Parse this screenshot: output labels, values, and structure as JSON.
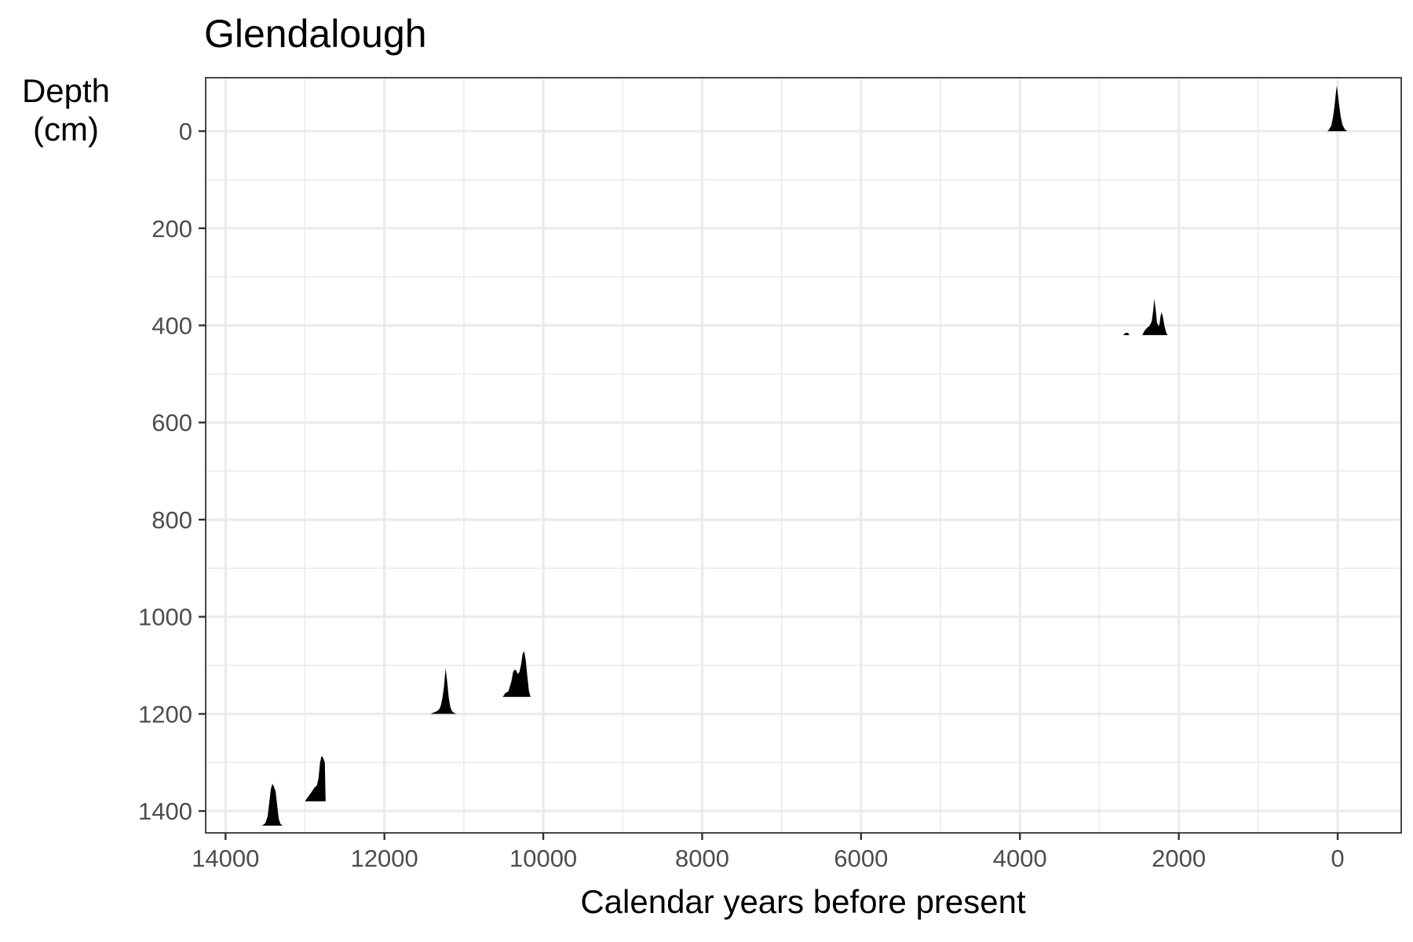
{
  "chart_data": {
    "type": "area",
    "title": "Glendalough",
    "xlabel": "Calendar years before present",
    "ylabel_lines": [
      "Depth",
      "(cm)"
    ],
    "x_reversed": true,
    "y_reversed": true,
    "xlim": [
      14250,
      -800
    ],
    "ylim": [
      -110,
      1445
    ],
    "x_ticks": [
      14000,
      12000,
      10000,
      8000,
      6000,
      4000,
      2000,
      0
    ],
    "x_tick_labels": [
      "14000",
      "12000",
      "10000",
      "8000",
      "6000",
      "4000",
      "2000",
      "0"
    ],
    "y_ticks": [
      0,
      200,
      400,
      600,
      800,
      1000,
      1200,
      1400
    ],
    "y_tick_labels": [
      "0",
      "200",
      "400",
      "600",
      "800",
      "1000",
      "1200",
      "1400"
    ],
    "grid": true,
    "legend": "none",
    "fill_color": "#000000",
    "dates": [
      {
        "name": "date-1",
        "depth": 0,
        "ages": [
          -120,
          -90,
          -60,
          -40,
          -20,
          0,
          10,
          20,
          40,
          60,
          80,
          110,
          130
        ],
        "density": [
          0.0,
          0.04,
          0.14,
          0.3,
          0.55,
          0.85,
          1.0,
          0.88,
          0.55,
          0.3,
          0.12,
          0.03,
          0.0
        ]
      },
      {
        "name": "date-2",
        "depth": 420,
        "ages": [
          2700,
          2670,
          2640,
          2620,
          2600,
          2560,
          2460,
          2430,
          2400,
          2370,
          2340,
          2320,
          2310,
          2290,
          2275,
          2260,
          2250,
          2240,
          2230,
          2215,
          2200,
          2180,
          2160,
          2140
        ],
        "density": [
          0.0,
          0.05,
          0.05,
          0.0,
          0.0,
          0.0,
          0.0,
          0.1,
          0.16,
          0.2,
          0.3,
          0.58,
          0.8,
          0.55,
          0.28,
          0.22,
          0.2,
          0.28,
          0.42,
          0.5,
          0.4,
          0.2,
          0.06,
          0.0
        ]
      },
      {
        "name": "date-3",
        "depth": 1165,
        "ages": [
          10510,
          10480,
          10440,
          10400,
          10380,
          10360,
          10340,
          10320,
          10300,
          10280,
          10260,
          10240,
          10220,
          10200,
          10180,
          10160
        ],
        "density": [
          0.0,
          0.08,
          0.12,
          0.35,
          0.55,
          0.6,
          0.58,
          0.5,
          0.55,
          0.7,
          0.95,
          1.0,
          0.8,
          0.45,
          0.12,
          0.0
        ]
      },
      {
        "name": "date-4",
        "depth": 1200,
        "ages": [
          11420,
          11380,
          11340,
          11310,
          11290,
          11270,
          11250,
          11240,
          11230,
          11210,
          11190,
          11170,
          11150,
          11120,
          11090
        ],
        "density": [
          0.0,
          0.03,
          0.06,
          0.1,
          0.18,
          0.35,
          0.6,
          0.8,
          1.0,
          0.72,
          0.35,
          0.15,
          0.06,
          0.02,
          0.0
        ]
      },
      {
        "name": "date-5",
        "depth": 1380,
        "ages": [
          13000,
          12960,
          12920,
          12880,
          12850,
          12830,
          12810,
          12790,
          12770,
          12750,
          12740
        ],
        "density": [
          0.0,
          0.1,
          0.2,
          0.3,
          0.35,
          0.5,
          0.85,
          1.0,
          0.95,
          0.85,
          0.0
        ]
      },
      {
        "name": "date-6",
        "depth": 1430,
        "ages": [
          13540,
          13500,
          13470,
          13450,
          13430,
          13410,
          13390,
          13370,
          13350,
          13330,
          13310,
          13280
        ],
        "density": [
          0.0,
          0.05,
          0.2,
          0.5,
          0.8,
          0.92,
          0.85,
          0.75,
          0.45,
          0.15,
          0.04,
          0.0
        ]
      }
    ]
  }
}
